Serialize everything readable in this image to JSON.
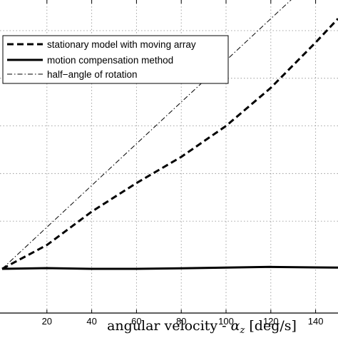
{
  "chart_data": {
    "type": "line",
    "xlabel_text": "angular velocity - ",
    "xlabel_symbol": "α",
    "xlabel_subscript": "z",
    "xlabel_unit": " [deg/s]",
    "xlim": [
      0,
      150
    ],
    "ylim": [
      0,
      1.35
    ],
    "grid": true,
    "legend_position": "top-left",
    "x_ticks": [
      20,
      40,
      60,
      80,
      100,
      120,
      140
    ],
    "x_tick_labels": [
      "20",
      "40",
      "60",
      "80",
      "100",
      "120",
      "140"
    ],
    "y_gridlines": [
      0.2,
      0.4,
      0.6,
      0.8,
      1.0,
      1.2
    ],
    "series": [
      {
        "name": "stationary model with moving array",
        "style": "dashed",
        "x": [
          0,
          20,
          40,
          60,
          80,
          100,
          120,
          140,
          150
        ],
        "y": [
          0.0,
          0.1,
          0.24,
          0.36,
          0.47,
          0.6,
          0.76,
          0.95,
          1.05
        ]
      },
      {
        "name": "motion compensation method",
        "style": "solid",
        "x": [
          0,
          20,
          40,
          60,
          80,
          100,
          120,
          140,
          150
        ],
        "y": [
          0.0,
          0.003,
          0.0,
          0.0,
          0.002,
          0.005,
          0.008,
          0.006,
          0.005
        ]
      },
      {
        "name": "half−angle of rotation",
        "style": "dashdot",
        "x": [
          0,
          20,
          40,
          60,
          80,
          100,
          120,
          140
        ],
        "y": [
          0.0,
          0.175,
          0.35,
          0.525,
          0.7,
          0.875,
          1.05,
          1.225
        ]
      }
    ]
  }
}
